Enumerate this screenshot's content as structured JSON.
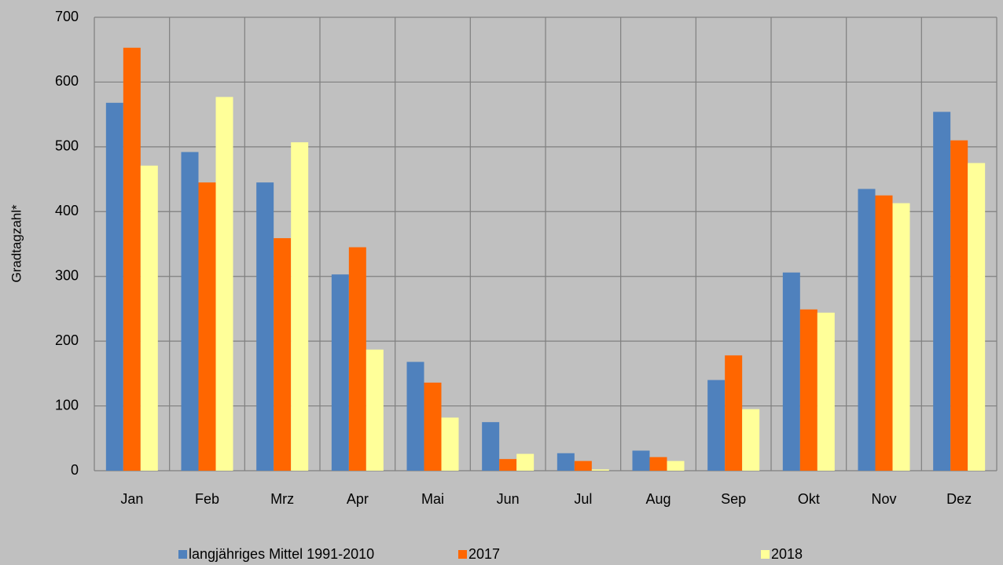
{
  "chart_data": {
    "type": "bar",
    "y_label": "Gradtagzahl*",
    "categories": [
      "Jan",
      "Feb",
      "Mrz",
      "Apr",
      "Mai",
      "Jun",
      "Jul",
      "Aug",
      "Sep",
      "Okt",
      "Nov",
      "Dez"
    ],
    "series": [
      {
        "name": "langjähriges Mittel 1991-2010",
        "color": "#4f81bd",
        "values": [
          568,
          492,
          445,
          303,
          168,
          75,
          27,
          31,
          140,
          306,
          435,
          554
        ]
      },
      {
        "name": "2017",
        "color": "#ff6600",
        "values": [
          653,
          445,
          359,
          345,
          136,
          18,
          15,
          21,
          178,
          249,
          425,
          510
        ]
      },
      {
        "name": "2018",
        "color": "#ffff99",
        "values": [
          471,
          577,
          507,
          187,
          82,
          26,
          2,
          15,
          95,
          244,
          413,
          475
        ]
      }
    ],
    "ylim": [
      0,
      700
    ],
    "yticks": [
      0,
      100,
      200,
      300,
      400,
      500,
      600,
      700
    ],
    "grid": true,
    "legend": "bottom"
  }
}
